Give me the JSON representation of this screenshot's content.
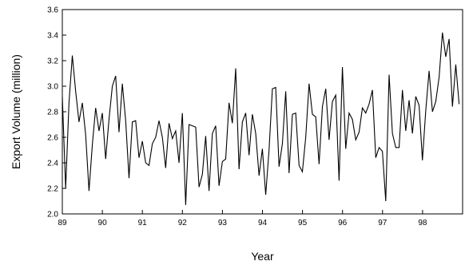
{
  "chart_data": {
    "type": "line",
    "title": "",
    "xlabel": "Year",
    "ylabel": "Export Volume (million)",
    "xlim": [
      89,
      99
    ],
    "ylim": [
      2.0,
      3.6
    ],
    "x_ticks": [
      "89",
      "90",
      "91",
      "92",
      "93",
      "94",
      "95",
      "96",
      "97",
      "98"
    ],
    "y_ticks": [
      "2.0",
      "2.2",
      "2.4",
      "2.6",
      "2.8",
      "3.0",
      "3.2",
      "3.4",
      "3.6"
    ],
    "grid": false,
    "legend": "none",
    "line_color": "#000000",
    "series": [
      {
        "x_start": 89,
        "step": 0.0833,
        "values": [
          2.92,
          2.2,
          2.87,
          3.24,
          2.96,
          2.72,
          2.87,
          2.62,
          2.18,
          2.54,
          2.83,
          2.65,
          2.79,
          2.43,
          2.74,
          3.0,
          3.08,
          2.64,
          3.02,
          2.73,
          2.28,
          2.72,
          2.73,
          2.44,
          2.57,
          2.4,
          2.38,
          2.55,
          2.6,
          2.73,
          2.6,
          2.36,
          2.71,
          2.59,
          2.65,
          2.4,
          2.79,
          2.07,
          2.7,
          2.69,
          2.68,
          2.21,
          2.31,
          2.61,
          2.18,
          2.63,
          2.69,
          2.22,
          2.41,
          2.43,
          2.87,
          2.71,
          3.14,
          2.35,
          2.72,
          2.79,
          2.46,
          2.78,
          2.63,
          2.3,
          2.51,
          2.15,
          2.5,
          2.98,
          2.99,
          2.37,
          2.55,
          2.96,
          2.32,
          2.78,
          2.79,
          2.38,
          2.33,
          2.6,
          3.02,
          2.78,
          2.76,
          2.39,
          2.84,
          2.98,
          2.58,
          2.88,
          2.93,
          2.26,
          3.15,
          2.51,
          2.79,
          2.74,
          2.58,
          2.64,
          2.83,
          2.79,
          2.86,
          2.97,
          2.44,
          2.52,
          2.49,
          2.1,
          3.09,
          2.63,
          2.52,
          2.52,
          2.97,
          2.65,
          2.89,
          2.63,
          2.92,
          2.85,
          2.42,
          2.81,
          3.12,
          2.8,
          2.88,
          3.07,
          3.42,
          3.23,
          3.37,
          2.84,
          3.17,
          2.86
        ]
      }
    ]
  }
}
